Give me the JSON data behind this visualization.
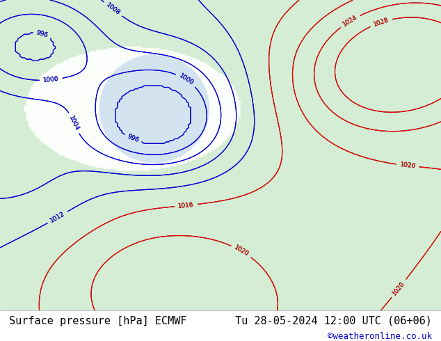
{
  "title": "",
  "bottom_left_text": "Surface pressure [hPa] ECMWF",
  "bottom_right_text": "Tu 28-05-2024 12:00 UTC (06+06)",
  "copyright_text": "©weatheronline.co.uk",
  "bg_color": "#ffffff",
  "map_bg_land": "#c8e6c8",
  "map_bg_sea": "#e8e8f0",
  "bottom_bar_color": "#e0e0e0",
  "text_color": "#000000",
  "copyright_color": "#0000cc",
  "font_size_bottom": 11,
  "fig_width": 6.34,
  "fig_height": 4.9,
  "dpi": 100
}
